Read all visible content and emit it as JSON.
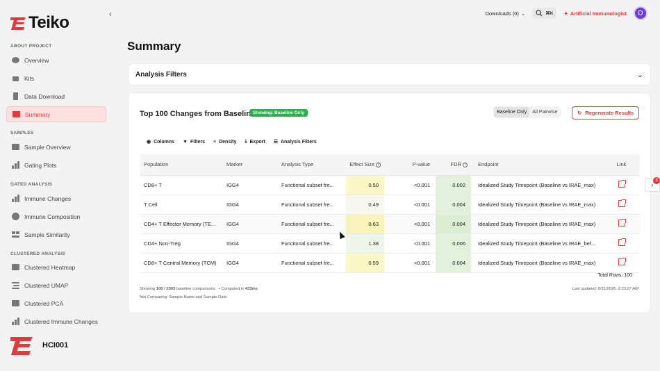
{
  "brand": {
    "name": "Teiko",
    "accent": "#e0393e"
  },
  "sidebar": {
    "sections": [
      {
        "label": "ABOUT PROJECT",
        "items": [
          {
            "label": "Overview",
            "icon": "overview-icon"
          },
          {
            "label": "Kits",
            "icon": "kits-icon"
          },
          {
            "label": "Data Download",
            "icon": "data-download-icon"
          },
          {
            "label": "Summary",
            "icon": "summary-icon",
            "active": true
          }
        ]
      },
      {
        "label": "SAMPLES",
        "items": [
          {
            "label": "Sample Overview",
            "icon": "sample-overview-icon"
          },
          {
            "label": "Gating Plots",
            "icon": "gating-plots-icon"
          }
        ]
      },
      {
        "label": "GATED ANALYSIS",
        "items": [
          {
            "label": "Immune Changes",
            "icon": "immune-changes-icon"
          },
          {
            "label": "Immune Composition",
            "icon": "immune-composition-icon"
          },
          {
            "label": "Sample Similarity",
            "icon": "sample-similarity-icon"
          }
        ]
      },
      {
        "label": "CLUSTERED ANALYSIS",
        "items": [
          {
            "label": "Clustered Heatmap",
            "icon": "clustered-heatmap-icon"
          },
          {
            "label": "Clustered UMAP",
            "icon": "clustered-umap-icon"
          },
          {
            "label": "Clustered PCA",
            "icon": "clustered-pca-icon"
          },
          {
            "label": "Clustered Immune Changes",
            "icon": "clustered-immune-changes-icon"
          }
        ]
      }
    ],
    "project_id": "HCI001"
  },
  "topbar": {
    "downloads": "Downloads (0)",
    "shortcut": "⌘K",
    "ai_label": "Artificial Immunologist",
    "avatar_initial": "D"
  },
  "page": {
    "title": "Summary"
  },
  "analysis_filters": {
    "title": "Analysis Filters"
  },
  "results": {
    "title": "Top 100 Changes from Baseline",
    "badge": "Showing: Baseline Only",
    "toggle": [
      "Baseline Only",
      "All Pairwise"
    ],
    "regenerate": "Regenerate Results",
    "toolbar": [
      "Columns",
      "Filters",
      "Density",
      "Export",
      "Analysis Filters"
    ],
    "columns": [
      "Population",
      "Marker",
      "Analysis Type",
      "Effect Size",
      "P-value",
      "FDR",
      "Endpoint",
      "Link"
    ],
    "rows": [
      {
        "population": "CD8+ T",
        "marker": "IGG4",
        "analysis_type": "Functional subset fre...",
        "effect_size": "0.50",
        "p_value": "<0.001",
        "fdr": "0.002",
        "endpoint": "Idealized Study Timepoint (Baseline vs IRAE_max)"
      },
      {
        "population": "T Cell",
        "marker": "IGG4",
        "analysis_type": "Functional subset fre...",
        "effect_size": "0.49",
        "p_value": "<0.001",
        "fdr": "0.004",
        "endpoint": "Idealized Study Timepoint (Baseline vs IRAE_max)"
      },
      {
        "population": "CD4+ T Effector Memory (TE...",
        "marker": "IGG4",
        "analysis_type": "Functional subset fre...",
        "effect_size": "0.63",
        "p_value": "<0.001",
        "fdr": "0.004",
        "endpoint": "Idealized Study Timepoint (Baseline vs IRAE_max)"
      },
      {
        "population": "CD4+ Non-Treg",
        "marker": "IGG4",
        "analysis_type": "Functional subset fre...",
        "effect_size": "1.38",
        "p_value": "<0.001",
        "fdr": "0.006",
        "endpoint": "Idealized Study Timepoint (Baseline vs IRAE_bef..."
      },
      {
        "population": "CD8+ T Central Memory (TCM)",
        "marker": "IGG4",
        "analysis_type": "Functional subset fre...",
        "effect_size": "0.59",
        "p_value": "<0.001",
        "fdr": "0.004",
        "endpoint": "Idealized Study Timepoint (Baseline vs IRAE_max)"
      }
    ],
    "total_rows": "Total Rows: 100",
    "showing_prefix": "Showing ",
    "showing_count": "100 / 2303",
    "showing_suffix": " baseline comparisons",
    "computed_prefix": "• Computed in ",
    "computed_time": "433ms",
    "not_comparing": "Not Comparing: Sample Name and Sample Date",
    "last_updated": "Last updated: 8/31/2026, 2:33:27 AM"
  },
  "side_panel_badge": "3"
}
